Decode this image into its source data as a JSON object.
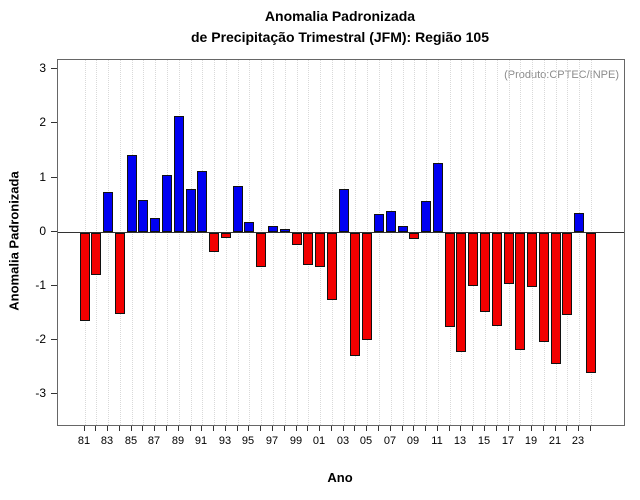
{
  "figure": {
    "title_line1": "Anomalia Padronizada",
    "title_line2": "de Precipitação Trimestral (JFM): Região 105",
    "annotation": "(Produto:CPTEC/INPE)",
    "xlabel": "Ano",
    "ylabel": "Anomalia Padronizada"
  },
  "chart_data": {
    "type": "bar",
    "title": "Anomalia Padronizada de Precipitação Trimestral (JFM): Região 105",
    "xlabel": "Ano",
    "ylabel": "Anomalia Padronizada",
    "x": [
      1981,
      1982,
      1983,
      1984,
      1985,
      1986,
      1987,
      1988,
      1989,
      1990,
      1991,
      1992,
      1993,
      1994,
      1995,
      1996,
      1997,
      1998,
      1999,
      2000,
      2001,
      2002,
      2003,
      2004,
      2005,
      2006,
      2007,
      2008,
      2009,
      2010,
      2011,
      2012,
      2013,
      2014,
      2015,
      2016,
      2017,
      2018,
      2019,
      2020,
      2021,
      2022,
      2023,
      2024
    ],
    "values": [
      -1.62,
      -0.77,
      0.74,
      -1.49,
      1.42,
      0.6,
      0.25,
      1.05,
      2.15,
      0.8,
      1.13,
      -0.35,
      -0.09,
      0.85,
      0.19,
      -0.62,
      0.12,
      0.06,
      -0.23,
      -0.6,
      -0.63,
      -1.23,
      0.8,
      -2.28,
      -1.97,
      0.33,
      0.39,
      0.11,
      -0.11,
      0.57,
      1.27,
      -1.73,
      -2.2,
      -0.97,
      -1.45,
      -1.71,
      -0.94,
      -2.16,
      -0.99,
      -2.02,
      -2.41,
      -1.51,
      0.36,
      -2.58
    ],
    "x_tick_labels": [
      "81",
      "83",
      "85",
      "87",
      "89",
      "91",
      "93",
      "95",
      "97",
      "99",
      "01",
      "03",
      "05",
      "07",
      "09",
      "11",
      "13",
      "15",
      "17",
      "19",
      "21",
      "23"
    ],
    "y_tick_labels": [
      "3",
      "2",
      "1",
      "0",
      "-1",
      "-2",
      "-3"
    ],
    "yticks": [
      3,
      2,
      1,
      0,
      -1,
      -2,
      -3
    ],
    "ylim": [
      -3.57,
      3.17
    ],
    "bar_color_positive": "#0000f2",
    "bar_color_negative": "#f20000",
    "grid": "vertical-dotted",
    "legend_position": "none",
    "annotation": "(Produto:CPTEC/INPE)"
  }
}
